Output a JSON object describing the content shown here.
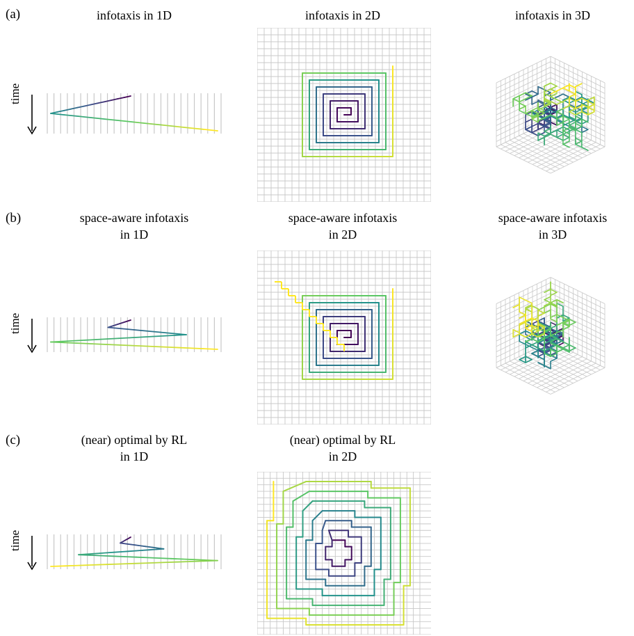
{
  "rows": [
    {
      "label": "(a)",
      "panels": [
        {
          "title_lines": [
            "infotaxis in 1D"
          ],
          "kind": "1d",
          "time_label": "time",
          "path": [
            0.48,
            0.02,
            0.98
          ]
        },
        {
          "title_lines": [
            "infotaxis in 2D"
          ],
          "kind": "2d-spiral"
        },
        {
          "title_lines": [
            "infotaxis in 3D"
          ],
          "kind": "3d"
        }
      ]
    },
    {
      "label": "(b)",
      "panels": [
        {
          "title_lines": [
            "space-aware infotaxis",
            "in 1D"
          ],
          "kind": "1d",
          "time_label": "time",
          "path": [
            0.48,
            0.35,
            0.8,
            0.02,
            0.98
          ]
        },
        {
          "title_lines": [
            "space-aware infotaxis",
            "in 2D"
          ],
          "kind": "2d-spiral-diag"
        },
        {
          "title_lines": [
            "space-aware infotaxis",
            "in 3D"
          ],
          "kind": "3d"
        }
      ]
    },
    {
      "label": "(c)",
      "panels": [
        {
          "title_lines": [
            "(near) optimal by RL",
            "in 1D"
          ],
          "kind": "1d",
          "time_label": "time",
          "path": [
            0.48,
            0.42,
            0.67,
            0.18,
            0.98,
            0.02
          ]
        },
        {
          "title_lines": [
            "(near) optimal by RL",
            "in 2D"
          ],
          "kind": "2d-rl"
        }
      ]
    }
  ],
  "colors": {
    "viridis": [
      "#440154",
      "#3b528b",
      "#21918c",
      "#5ec962",
      "#fde725"
    ],
    "grid": "#c8c8c8"
  }
}
